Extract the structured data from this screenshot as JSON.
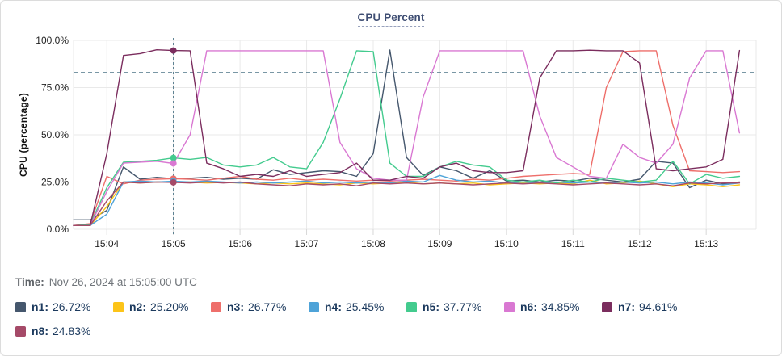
{
  "chart_data": {
    "type": "line",
    "title": "CPU Percent",
    "ylabel": "CPU (percentage)",
    "ylim": [
      0,
      100
    ],
    "grid": true,
    "y_tick_labels": [
      "0.0%",
      "25.0%",
      "50.0%",
      "75.0%",
      "100.0%"
    ],
    "y_tick_values": [
      0,
      25,
      50,
      75,
      100
    ],
    "x_tick_labels": [
      "15:04",
      "15:05",
      "15:06",
      "15:07",
      "15:08",
      "15:09",
      "15:10",
      "15:11",
      "15:12",
      "15:13"
    ],
    "x_tick_seconds": [
      30,
      90,
      150,
      210,
      270,
      330,
      390,
      450,
      510,
      570
    ],
    "x_domain_seconds": [
      0,
      615
    ],
    "time_start": "15:03:30",
    "interval_seconds": 15,
    "threshold_value": 83,
    "crosshair": {
      "index": 6,
      "time": "15:05:00"
    },
    "series": [
      {
        "name": "n1",
        "color": "#45576d",
        "values": [
          5,
          5,
          10,
          33,
          26.5,
          27.5,
          26.72,
          27,
          27.5,
          26.5,
          27,
          26.5,
          31.5,
          29,
          30,
          31,
          30.5,
          28,
          40,
          94.9,
          38,
          28.5,
          33,
          31,
          27,
          31,
          25.5,
          26,
          25,
          26,
          25.5,
          27,
          26,
          25,
          26.5,
          36,
          35,
          22,
          26,
          24,
          25
        ]
      },
      {
        "name": "n2",
        "color": "#fcc419",
        "values": [
          2,
          2,
          12,
          25,
          24.5,
          25,
          25.2,
          25,
          24.5,
          24.8,
          24.5,
          24,
          24.5,
          24,
          24.5,
          24,
          23.5,
          24.5,
          24,
          24.5,
          25,
          24,
          24.5,
          24,
          24.5,
          23.5,
          24,
          24.5,
          24,
          24.5,
          24,
          26,
          24,
          24.5,
          25.5,
          24,
          22.5,
          24,
          23.5,
          22.5,
          23.5
        ]
      },
      {
        "name": "n3",
        "color": "#ee6f6b",
        "values": [
          2,
          3,
          28,
          24,
          26,
          26.5,
          26.77,
          26.5,
          26,
          27,
          28,
          26.5,
          26,
          27,
          26,
          26.5,
          26,
          25.5,
          26,
          25.5,
          26,
          26.5,
          26,
          25.5,
          26.5,
          26,
          27,
          28,
          28.5,
          29,
          29.5,
          29,
          75,
          94,
          94.5,
          94.5,
          55,
          31,
          30.5,
          30,
          30.5
        ]
      },
      {
        "name": "n4",
        "color": "#4ea3d8",
        "values": [
          2,
          2,
          8,
          25,
          25.5,
          25,
          25.45,
          25,
          25.5,
          25,
          24.5,
          25,
          24.5,
          25,
          25.5,
          24.5,
          25,
          24.5,
          25,
          24.5,
          25.5,
          25,
          28.5,
          26,
          25,
          25.5,
          24.5,
          25,
          24.5,
          25,
          24.5,
          25,
          24.5,
          25,
          24.5,
          25,
          24,
          25,
          24.5,
          23.5,
          24.5
        ]
      },
      {
        "name": "n5",
        "color": "#43cb8e",
        "values": [
          2,
          2.5,
          22,
          35.5,
          36,
          36.5,
          37.77,
          37,
          38,
          34,
          33,
          34,
          38,
          33,
          32,
          46,
          69,
          94.5,
          94,
          35,
          28,
          28,
          33,
          36,
          34,
          33,
          26,
          25,
          26,
          24.5,
          26,
          25,
          27,
          26,
          25,
          26,
          36,
          24,
          29,
          27,
          28
        ]
      },
      {
        "name": "n6",
        "color": "#d978d2",
        "values": [
          2,
          2,
          20,
          35,
          35.5,
          36,
          34.85,
          50,
          94.5,
          94.5,
          94.5,
          94.5,
          94.5,
          94.5,
          94.5,
          94.5,
          46,
          32,
          27,
          26,
          26,
          70,
          94.5,
          94.5,
          94.5,
          94.5,
          94.5,
          94.5,
          60,
          38,
          33,
          28,
          27,
          45,
          38,
          35,
          45,
          80,
          94.5,
          94.5,
          51
        ]
      },
      {
        "name": "n7",
        "color": "#7b2d5e",
        "values": [
          2,
          2,
          40,
          92,
          93,
          95,
          94.61,
          94.5,
          35,
          32,
          28,
          29,
          28,
          31,
          28,
          29,
          30,
          35,
          26,
          26,
          28,
          27,
          33,
          35,
          31,
          30,
          30,
          31,
          80,
          94.5,
          94.5,
          94.8,
          94.5,
          94.5,
          88,
          32,
          31,
          32,
          33,
          37,
          94.6
        ]
      },
      {
        "name": "n8",
        "color": "#a54a68",
        "values": [
          2,
          2,
          15,
          25,
          24.5,
          25,
          24.83,
          24.5,
          25,
          24.5,
          25,
          24,
          23.5,
          23,
          24,
          23.5,
          24,
          23,
          24.5,
          24,
          24.5,
          24,
          24.5,
          24,
          23.5,
          24,
          24.5,
          24,
          24.5,
          24,
          23.5,
          24,
          24.5,
          24,
          23.5,
          24,
          23,
          24.5,
          24,
          24.5,
          24.5
        ]
      }
    ]
  },
  "tooltip": {
    "time_label": "Time:",
    "time_value": "Nov 26, 2024 at 15:05:00 UTC"
  },
  "legend": {
    "items": [
      {
        "name_label": "n1:",
        "value": "26.72%",
        "color": "#45576d"
      },
      {
        "name_label": "n2:",
        "value": "25.20%",
        "color": "#fcc419"
      },
      {
        "name_label": "n3:",
        "value": "26.77%",
        "color": "#ee6f6b"
      },
      {
        "name_label": "n4:",
        "value": "25.45%",
        "color": "#4ea3d8"
      },
      {
        "name_label": "n5:",
        "value": "37.77%",
        "color": "#43cb8e"
      },
      {
        "name_label": "n6:",
        "value": "34.85%",
        "color": "#d978d2"
      },
      {
        "name_label": "n7:",
        "value": "94.61%",
        "color": "#7b2d5e"
      },
      {
        "name_label": "n8:",
        "value": "24.83%",
        "color": "#a54a68"
      }
    ]
  },
  "colors": {
    "grid": "#e9e9e9",
    "tick": "#d8d8d8",
    "crosshair": "#4d7587",
    "threshold": "#4d7587",
    "axis_text": "#1f1f1f"
  }
}
